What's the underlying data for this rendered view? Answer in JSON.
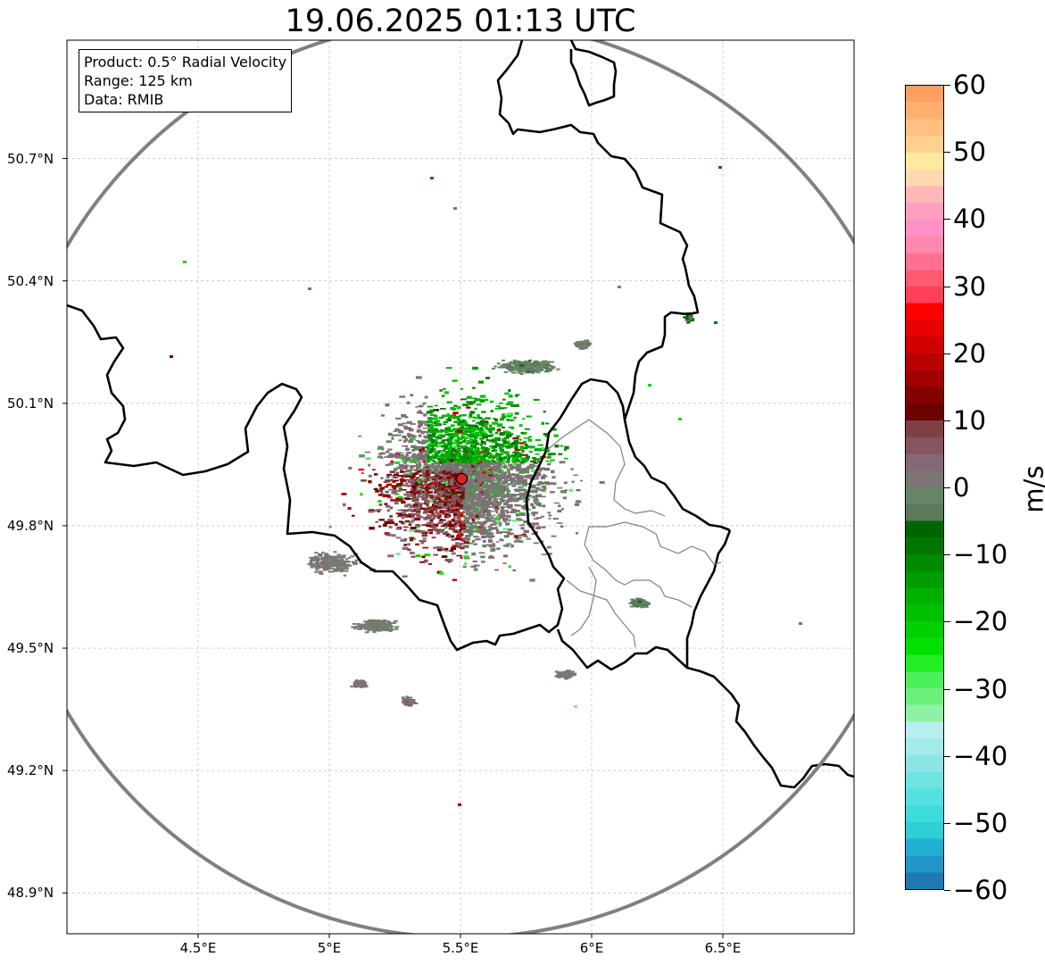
{
  "title": "19.06.2025 01:13 UTC",
  "info": {
    "product": "Product: 0.5° Radial Velocity",
    "range": "Range: 125 km",
    "data": "Data: RMIB"
  },
  "map": {
    "lon_range": [
      4.0,
      7.0
    ],
    "lat_range": [
      48.8,
      50.99
    ],
    "lat_ticks": [
      {
        "value": 50.7,
        "label": "50.7°N"
      },
      {
        "value": 50.4,
        "label": "50.4°N"
      },
      {
        "value": 50.1,
        "label": "50.1°N"
      },
      {
        "value": 49.8,
        "label": "49.8°N"
      },
      {
        "value": 49.5,
        "label": "49.5°N"
      },
      {
        "value": 49.2,
        "label": "49.2°N"
      },
      {
        "value": 48.9,
        "label": "48.9°N"
      }
    ],
    "lon_ticks": [
      {
        "value": 4.5,
        "label": "4.5°E"
      },
      {
        "value": 5.0,
        "label": "5°E"
      },
      {
        "value": 5.5,
        "label": "5.5°E"
      },
      {
        "value": 6.0,
        "label": "6°E"
      },
      {
        "value": 6.5,
        "label": "6.5°E"
      }
    ],
    "radar_site": {
      "lon": 5.505,
      "lat": 49.915
    },
    "range_km": 125,
    "border_color": "#000000",
    "ring_color": "#808080",
    "site_color": "#e02020"
  },
  "colorbar": {
    "label": "m/s",
    "min": -60,
    "max": 60,
    "ticks": [
      "60",
      "50",
      "40",
      "30",
      "20",
      "10",
      "0",
      "−10",
      "−20",
      "−30",
      "−40",
      "−50",
      "−60"
    ],
    "colors": [
      "#1f78b4",
      "#2196c8",
      "#22b0d0",
      "#2ecfd6",
      "#3ddbdc",
      "#55e0e0",
      "#6fe2e2",
      "#8ae6e6",
      "#a3eaea",
      "#b8eeee",
      "#8ef2a4",
      "#6cf07c",
      "#4cf05a",
      "#22ee22",
      "#00e000",
      "#00d000",
      "#00c000",
      "#00b000",
      "#009c00",
      "#008a00",
      "#007600",
      "#006400",
      "#5a7a5a",
      "#688568",
      "#7d7575",
      "#856878",
      "#845460",
      "#7e4045",
      "#6d0000",
      "#850000",
      "#a00000",
      "#b80000",
      "#d00000",
      "#e80000",
      "#ff0000",
      "#ff4058",
      "#ff5a70",
      "#ff7090",
      "#ff88b0",
      "#ff90c8",
      "#ffa0c0",
      "#ffb8b8",
      "#ffd8b0",
      "#ffe8a0",
      "#ffd090",
      "#ffc080",
      "#ffb070",
      "#ffa060"
    ]
  }
}
